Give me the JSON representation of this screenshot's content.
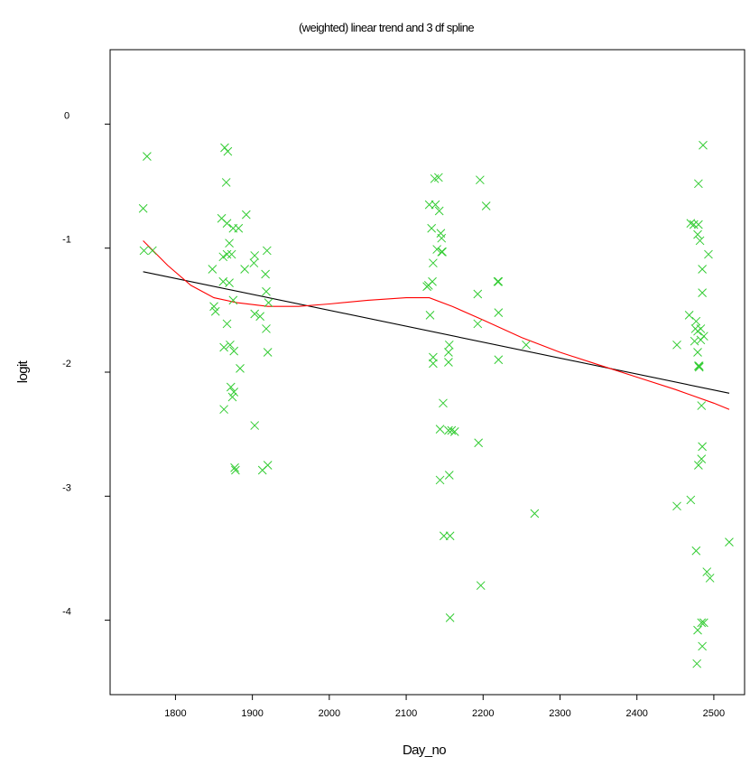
{
  "chart_data": {
    "type": "scatter",
    "title": "(weighted) linear trend and 3 df spline",
    "xlabel": "Day_no",
    "ylabel": "logit",
    "xlim": [
      1715,
      2540
    ],
    "ylim": [
      -4.6,
      0.6
    ],
    "xticks": [
      1800,
      1900,
      2000,
      2100,
      2200,
      2300,
      2400,
      2500
    ],
    "yticks": [
      0,
      -1,
      -2,
      -3,
      -4
    ],
    "xtick_labels": [
      "1800",
      "1900",
      "2000",
      "2100",
      "2200",
      "2300",
      "2400",
      "2500"
    ],
    "ytick_labels": [
      "0",
      "-1",
      "-2",
      "-3",
      "-4"
    ],
    "grid": false,
    "colors": {
      "points": "#33cc33",
      "spline": "#ff0000",
      "linear": "#000000"
    },
    "points": [
      [
        1758,
        -0.68
      ],
      [
        1759,
        -1.02
      ],
      [
        1763,
        -0.26
      ],
      [
        1770,
        -1.02
      ],
      [
        1848,
        -1.17
      ],
      [
        1850,
        -1.47
      ],
      [
        1852,
        -1.51
      ],
      [
        1860,
        -0.76
      ],
      [
        1862,
        -1.07
      ],
      [
        1862,
        -1.27
      ],
      [
        1863,
        -1.8
      ],
      [
        1863,
        -2.3
      ],
      [
        1864,
        -0.19
      ],
      [
        1866,
        -0.47
      ],
      [
        1867,
        -0.8
      ],
      [
        1867,
        -1.05
      ],
      [
        1867,
        -1.61
      ],
      [
        1868,
        -0.22
      ],
      [
        1870,
        -0.96
      ],
      [
        1870,
        -1.28
      ],
      [
        1871,
        -1.78
      ],
      [
        1872,
        -2.12
      ],
      [
        1873,
        -1.05
      ],
      [
        1874,
        -2.2
      ],
      [
        1875,
        -0.84
      ],
      [
        1875,
        -1.42
      ],
      [
        1876,
        -1.83
      ],
      [
        1876,
        -2.16
      ],
      [
        1877,
        -2.77
      ],
      [
        1878,
        -2.79
      ],
      [
        1882,
        -0.84
      ],
      [
        1884,
        -1.97
      ],
      [
        1890,
        -1.17
      ],
      [
        1892,
        -0.73
      ],
      [
        1902,
        -1.12
      ],
      [
        1903,
        -1.06
      ],
      [
        1903,
        -1.53
      ],
      [
        1903,
        -2.43
      ],
      [
        1910,
        -1.55
      ],
      [
        1913,
        -2.79
      ],
      [
        1917,
        -1.21
      ],
      [
        1918,
        -1.35
      ],
      [
        1918,
        -1.65
      ],
      [
        1919,
        -1.02
      ],
      [
        1920,
        -1.84
      ],
      [
        1920,
        -2.75
      ],
      [
        1921,
        -1.44
      ],
      [
        2127,
        -1.31
      ],
      [
        2129,
        -1.3
      ],
      [
        2130,
        -0.65
      ],
      [
        2131,
        -1.54
      ],
      [
        2133,
        -0.84
      ],
      [
        2134,
        -1.27
      ],
      [
        2135,
        -1.12
      ],
      [
        2135,
        -1.88
      ],
      [
        2135,
        -1.93
      ],
      [
        2137,
        -0.44
      ],
      [
        2138,
        -0.65
      ],
      [
        2140,
        -1.01
      ],
      [
        2142,
        -0.43
      ],
      [
        2143,
        -0.7
      ],
      [
        2144,
        -2.46
      ],
      [
        2144,
        -2.87
      ],
      [
        2145,
        -0.88
      ],
      [
        2146,
        -0.92
      ],
      [
        2146,
        -1.03
      ],
      [
        2147,
        -1.03
      ],
      [
        2148,
        -2.25
      ],
      [
        2149,
        -3.32
      ],
      [
        2155,
        -1.84
      ],
      [
        2155,
        -1.92
      ],
      [
        2155,
        -2.47
      ],
      [
        2156,
        -1.78
      ],
      [
        2156,
        -2.83
      ],
      [
        2157,
        -3.32
      ],
      [
        2157,
        -3.98
      ],
      [
        2159,
        -2.47
      ],
      [
        2163,
        -2.48
      ],
      [
        2193,
        -1.37
      ],
      [
        2193,
        -1.61
      ],
      [
        2194,
        -2.57
      ],
      [
        2196,
        -0.45
      ],
      [
        2197,
        -3.72
      ],
      [
        2204,
        -0.66
      ],
      [
        2219,
        -1.27
      ],
      [
        2220,
        -1.27
      ],
      [
        2220,
        -1.52
      ],
      [
        2220,
        -1.9
      ],
      [
        2256,
        -1.78
      ],
      [
        2267,
        -3.14
      ],
      [
        2452,
        -1.78
      ],
      [
        2452,
        -3.08
      ],
      [
        2468,
        -1.54
      ],
      [
        2470,
        -0.8
      ],
      [
        2470,
        -3.03
      ],
      [
        2474,
        -0.81
      ],
      [
        2475,
        -1.75
      ],
      [
        2476,
        -1.65
      ],
      [
        2477,
        -1.59
      ],
      [
        2477,
        -3.44
      ],
      [
        2478,
        -4.35
      ],
      [
        2479,
        -0.89
      ],
      [
        2479,
        -1.67
      ],
      [
        2479,
        -1.84
      ],
      [
        2479,
        -4.08
      ],
      [
        2480,
        -0.48
      ],
      [
        2480,
        -0.81
      ],
      [
        2480,
        -1.95
      ],
      [
        2480,
        -2.75
      ],
      [
        2481,
        -1.95
      ],
      [
        2481,
        -1.96
      ],
      [
        2482,
        -0.94
      ],
      [
        2483,
        -1.74
      ],
      [
        2483,
        -1.65
      ],
      [
        2484,
        -2.27
      ],
      [
        2484,
        -2.7
      ],
      [
        2484,
        -4.02
      ],
      [
        2485,
        -1.17
      ],
      [
        2485,
        -1.36
      ],
      [
        2485,
        -2.6
      ],
      [
        2485,
        -4.21
      ],
      [
        2486,
        -0.17
      ],
      [
        2487,
        -1.71
      ],
      [
        2487,
        -4.02
      ],
      [
        2491,
        -3.61
      ],
      [
        2493,
        -1.05
      ],
      [
        2495,
        -3.66
      ],
      [
        2520,
        -3.37
      ]
    ],
    "series": [
      {
        "values": [
          [
            1758,
            -1.19
          ],
          [
            2520,
            -2.17
          ]
        ]
      },
      {
        "values": [
          [
            1758,
            -0.94
          ],
          [
            1790,
            -1.14
          ],
          [
            1820,
            -1.3
          ],
          [
            1850,
            -1.4
          ],
          [
            1880,
            -1.44
          ],
          [
            1920,
            -1.47
          ],
          [
            1960,
            -1.47
          ],
          [
            2000,
            -1.45
          ],
          [
            2050,
            -1.42
          ],
          [
            2100,
            -1.4
          ],
          [
            2130,
            -1.4
          ],
          [
            2160,
            -1.47
          ],
          [
            2200,
            -1.58
          ],
          [
            2250,
            -1.72
          ],
          [
            2300,
            -1.84
          ],
          [
            2350,
            -1.94
          ],
          [
            2400,
            -2.04
          ],
          [
            2450,
            -2.14
          ],
          [
            2500,
            -2.25
          ],
          [
            2520,
            -2.3
          ]
        ]
      }
    ]
  }
}
